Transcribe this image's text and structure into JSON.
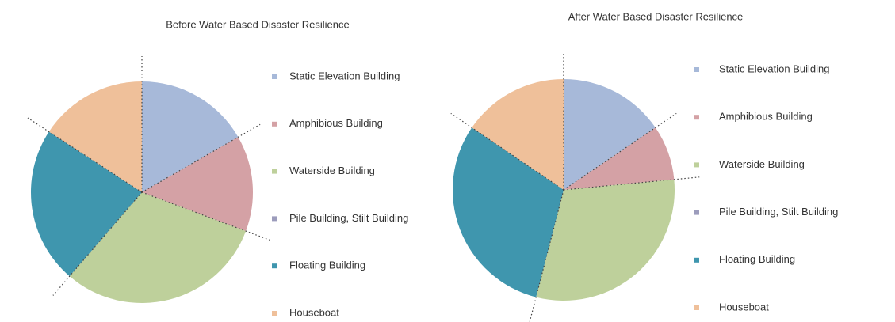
{
  "chart_data": [
    {
      "type": "pie",
      "title": "Before Water Based Disaster Resilience",
      "categories": [
        "Static Elevation Building",
        "Amphibious Building",
        "Waterside Building",
        "Pile Building, Stilt Building",
        "Floating Building",
        "Houseboat"
      ],
      "values": [
        16.7,
        14,
        30.6,
        0,
        22.9,
        15.8
      ],
      "colors": [
        "#a7b9d9",
        "#d4a1a5",
        "#bed09b",
        "#9c9cbc",
        "#3f96ae",
        "#efc09a"
      ]
    },
    {
      "type": "pie",
      "title": "After Water Based Disaster Resilience",
      "categories": [
        "Static Elevation Building",
        "Amphibious Building",
        "Waterside Building",
        "Pile Building, Stilt Building",
        "Floating Building",
        "Houseboat"
      ],
      "values": [
        15.5,
        8,
        30.5,
        0,
        30.5,
        15.5
      ],
      "colors": [
        "#a7b9d9",
        "#d4a1a5",
        "#bed09b",
        "#9c9cbc",
        "#3f96ae",
        "#efc09a"
      ]
    }
  ]
}
